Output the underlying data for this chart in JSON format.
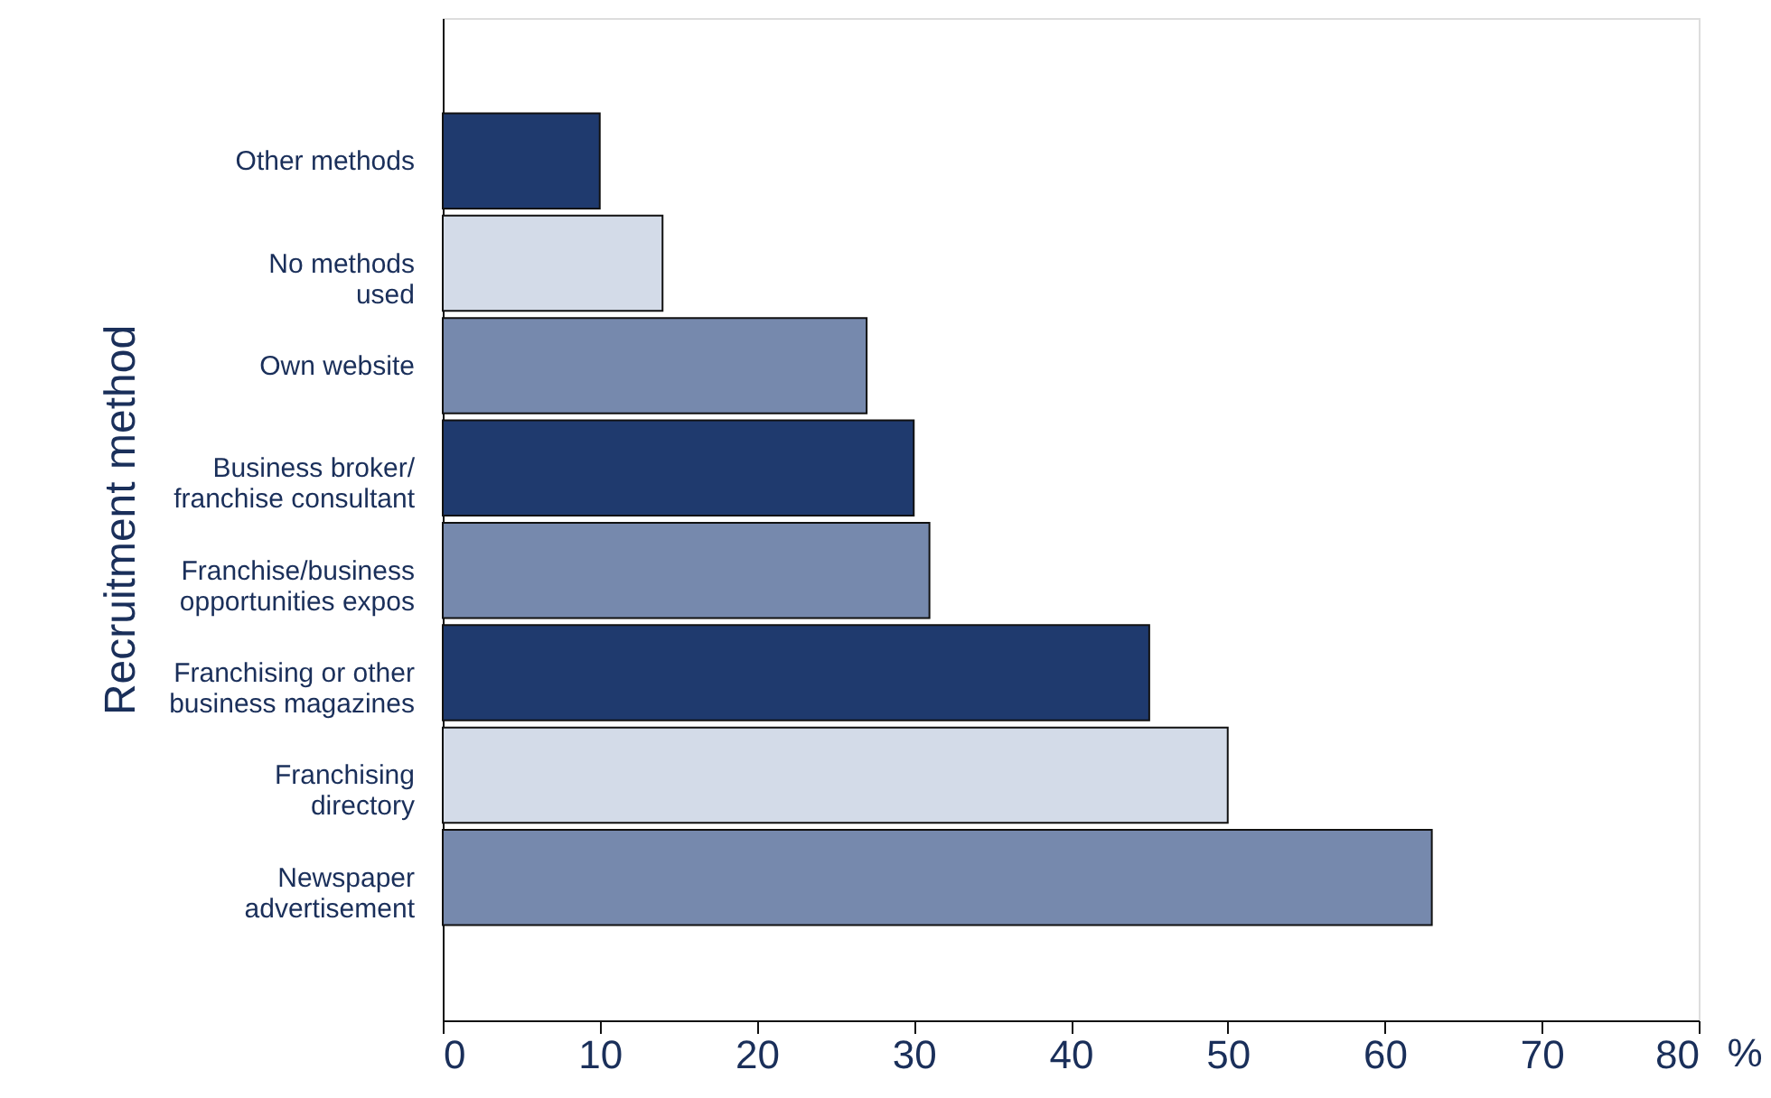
{
  "chart_data": {
    "type": "bar",
    "orientation": "horizontal",
    "ylabel": "Recruitment method",
    "xlabel": "%",
    "categories": [
      "Other methods",
      "No methods\nused",
      "Own website",
      "Business broker/\nfranchise consultant",
      "Franchise/business\nopportunities expos",
      "Franchising or other\nbusiness magazines",
      "Franchising\ndirectory",
      "Newspaper\nadvertisement"
    ],
    "values": [
      10,
      14,
      27,
      30,
      31,
      45,
      50,
      63
    ],
    "colors": [
      "#1f3a6e",
      "#d3dbe8",
      "#7689ad",
      "#1f3a6e",
      "#7689ad",
      "#1f3a6e",
      "#d3dbe8",
      "#7689ad"
    ],
    "xlim": [
      0,
      80
    ],
    "xticks": [
      0,
      10,
      20,
      30,
      40,
      50,
      60,
      70,
      80
    ],
    "grid": false,
    "legend": false
  }
}
